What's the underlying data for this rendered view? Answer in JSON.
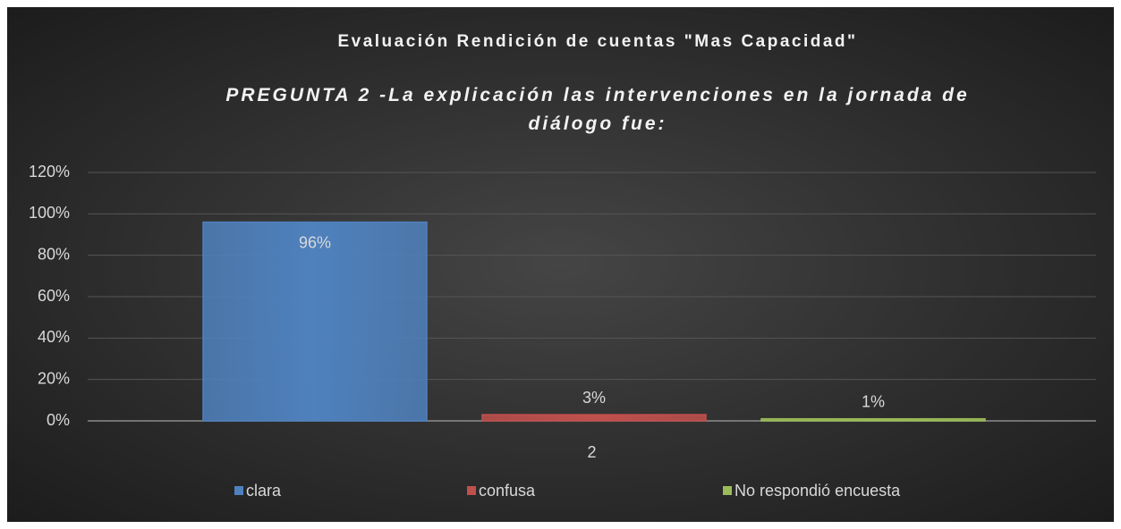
{
  "chart_data": {
    "type": "bar",
    "title": "Evaluación Rendición de cuentas \"Mas Capacidad\"",
    "subtitle": "PREGUNTA 2 -La explicación las intervenciones en la jornada de diálogo fue:",
    "categories": [
      "2"
    ],
    "series": [
      {
        "name": "clara",
        "color": "#4f81bd",
        "values": [
          96
        ],
        "value_labels": [
          "96%"
        ]
      },
      {
        "name": "confusa",
        "color": "#c0504d",
        "values": [
          3
        ],
        "value_labels": [
          "3%"
        ]
      },
      {
        "name": "No respondió encuesta",
        "color": "#9bbb59",
        "values": [
          1
        ],
        "value_labels": [
          "1%"
        ]
      }
    ],
    "ylim": [
      0,
      120
    ],
    "yticks": [
      {
        "value": 0,
        "label": "0%"
      },
      {
        "value": 20,
        "label": "20%"
      },
      {
        "value": 40,
        "label": "40%"
      },
      {
        "value": 60,
        "label": "60%"
      },
      {
        "value": 80,
        "label": "80%"
      },
      {
        "value": 100,
        "label": "100%"
      },
      {
        "value": 120,
        "label": "120%"
      }
    ],
    "grid": true,
    "legend": "bottom"
  }
}
